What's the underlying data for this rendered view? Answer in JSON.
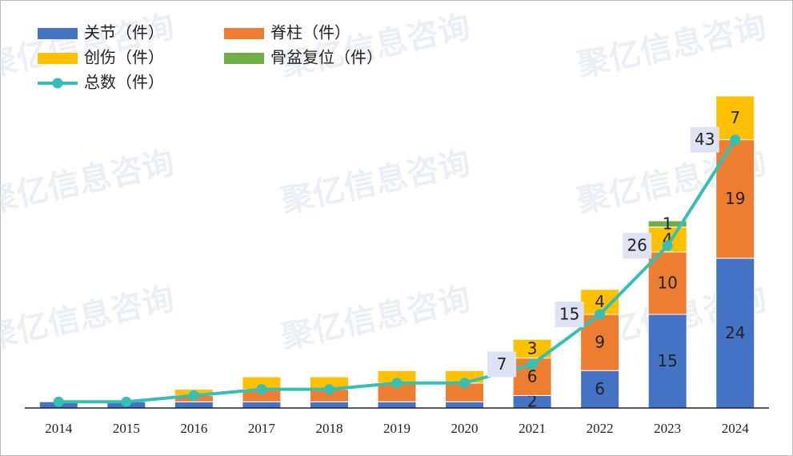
{
  "chart_data": {
    "type": "stacked_bar_line",
    "watermark": "聚亿信息咨询",
    "categories": [
      "2014",
      "2015",
      "2016",
      "2017",
      "2018",
      "2019",
      "2020",
      "2021",
      "2022",
      "2023",
      "2024"
    ],
    "series": [
      {
        "name": "关节（件）",
        "color": "#4472c4",
        "values": [
          1,
          1,
          1,
          1,
          1,
          1,
          1,
          2,
          6,
          15,
          24
        ]
      },
      {
        "name": "脊柱（件）",
        "color": "#ed7d31",
        "values": [
          0,
          0,
          1,
          2,
          2,
          3,
          3,
          6,
          9,
          10,
          19
        ]
      },
      {
        "name": "创伤（件）",
        "color": "#ffc000",
        "values": [
          0,
          0,
          1,
          2,
          2,
          2,
          2,
          3,
          4,
          4,
          7
        ]
      },
      {
        "name": "骨盆复位（件）",
        "color": "#70ad47",
        "values": [
          0,
          0,
          0,
          0,
          0,
          0,
          0,
          0,
          0,
          1,
          0
        ]
      }
    ],
    "line": {
      "name": "总数（件）",
      "color": "#35c0b5",
      "values": [
        1,
        1,
        2,
        3,
        3,
        4,
        4,
        7,
        15,
        26,
        43
      ]
    },
    "data_labels": [
      false,
      false,
      false,
      false,
      false,
      false,
      false,
      true,
      true,
      true,
      true
    ],
    "ylim": [
      0,
      55
    ]
  }
}
